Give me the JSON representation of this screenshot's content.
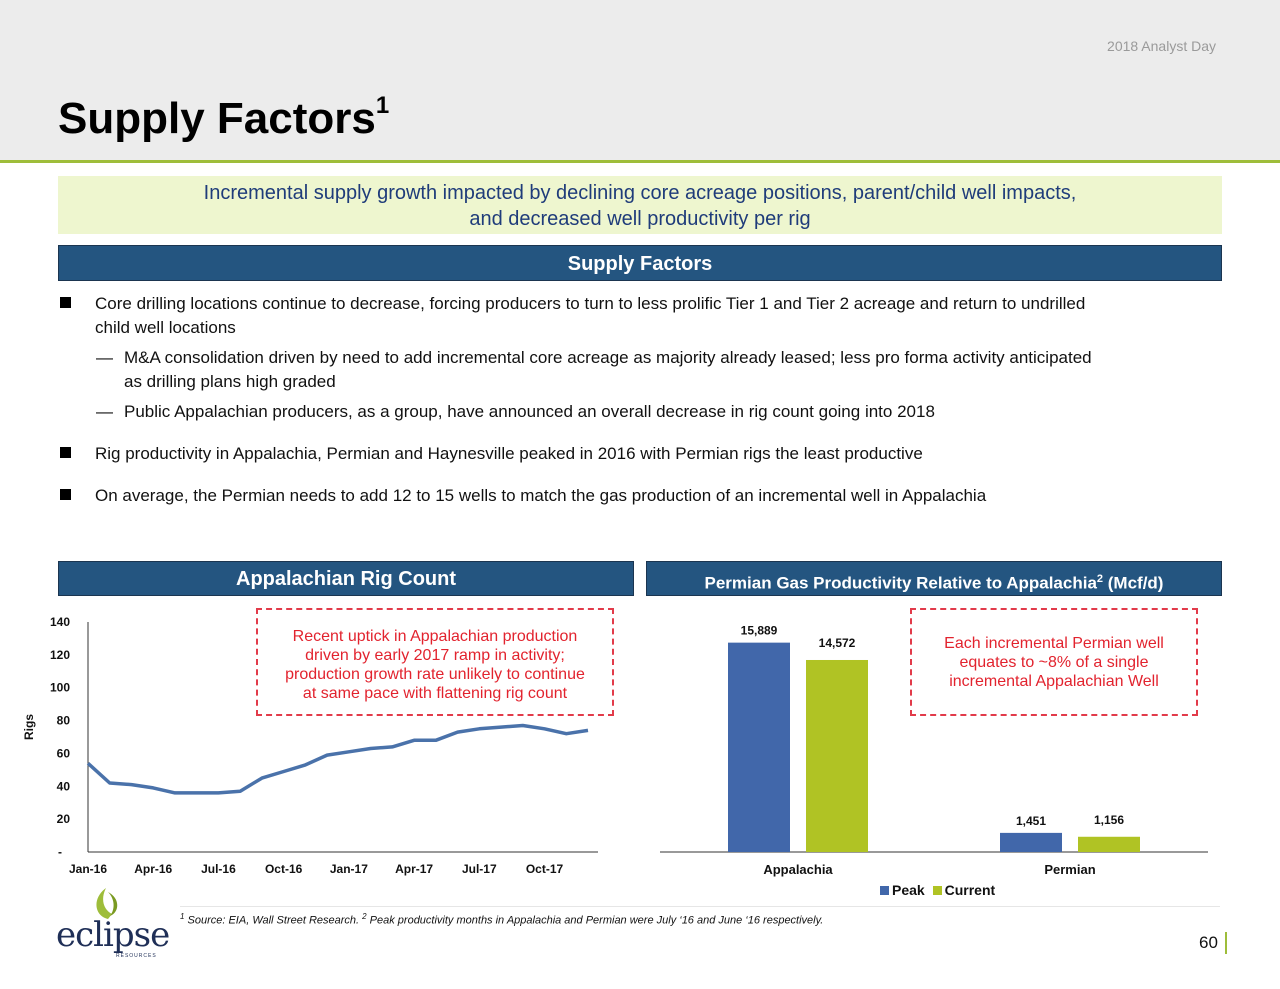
{
  "header": {
    "event": "2018 Analyst Day",
    "title": "Supply Factors",
    "title_sup": "1",
    "banner_line1": "Incremental supply growth impacted by declining core acreage positions, parent/child well impacts,",
    "banner_line2": "and decreased well productivity per rig"
  },
  "supply": {
    "heading": "Supply Factors",
    "bullet1_line1": "Core drilling locations continue to decrease, forcing producers to turn to less prolific Tier 1 and Tier 2 acreage and return to undrilled",
    "bullet1_line2": "child well locations",
    "sub1_line1": "M&A consolidation driven by need to add incremental core acreage as majority already leased; less pro forma activity anticipated",
    "sub1_line2": "as drilling plans high graded",
    "sub2": "Public Appalachian producers, as a group, have announced an overall decrease in rig count going into 2018",
    "bullet2": "Rig productivity in Appalachia, Permian and Haynesville peaked in 2016 with Permian rigs the least productive",
    "bullet3": "On average, the Permian needs to add 12 to 15 wells to match the gas production of an incremental well in Appalachia",
    "dash": "—"
  },
  "rig_panel": {
    "heading": "Appalachian Rig Count",
    "callout_line1": "Recent uptick in Appalachian production",
    "callout_line2": "driven by early 2017 ramp in activity;",
    "callout_line3": "production growth rate unlikely to continue",
    "callout_line4": "at same pace with flattening rig count"
  },
  "perm_panel": {
    "heading": "Permian Gas Productivity Relative to Appalachia",
    "heading_sup": "2",
    "heading_unit": " (Mcf/d)",
    "callout_line1": "Each incremental Permian well",
    "callout_line2": "equates to ~8% of a single",
    "callout_line3": "incremental Appalachian Well"
  },
  "chart_data": [
    {
      "type": "line",
      "title": "Appalachian Rig Count",
      "ylabel": "Rigs",
      "xlabel": "",
      "ylim": [
        0,
        140
      ],
      "yticks": [
        0,
        20,
        40,
        60,
        80,
        100,
        120,
        140
      ],
      "ytick_labels": [
        "-",
        "20",
        "40",
        "60",
        "80",
        "100",
        "120",
        "140"
      ],
      "xtick_labels": [
        "Jan-16",
        "Apr-16",
        "Jul-16",
        "Oct-16",
        "Jan-17",
        "Apr-17",
        "Jul-17",
        "Oct-17"
      ],
      "series": [
        {
          "name": "Rigs",
          "color": "#4a72aa",
          "values": [
            54,
            42,
            41,
            39,
            36,
            36,
            36,
            37,
            45,
            49,
            53,
            59,
            61,
            63,
            64,
            68,
            68,
            73,
            75,
            76,
            77,
            75,
            72,
            74
          ]
        }
      ]
    },
    {
      "type": "bar",
      "title": "Permian Gas Productivity Relative to Appalachia (Mcf/d)",
      "categories": [
        "Appalachia",
        "Permian"
      ],
      "ylim": [
        0,
        17000
      ],
      "series": [
        {
          "name": "Peak",
          "color": "#4167aa",
          "values": [
            15889,
            1451
          ],
          "labels": [
            "15,889",
            "1,451"
          ]
        },
        {
          "name": "Current",
          "color": "#b0c324",
          "values": [
            14572,
            1156
          ],
          "labels": [
            "14,572",
            "1,156"
          ]
        }
      ]
    }
  ],
  "legend": {
    "peak": "Peak",
    "current": "Current"
  },
  "footnote": {
    "sup1": "1",
    "text1": " Source: EIA, Wall Street Research. ",
    "sup2": "2",
    "text2": " Peak productivity months in Appalachia and Permian were July ‘16 and June ‘16 respectively."
  },
  "page_number": "60",
  "logo": {
    "word": "eclipse",
    "sub": "RESOURCES"
  }
}
